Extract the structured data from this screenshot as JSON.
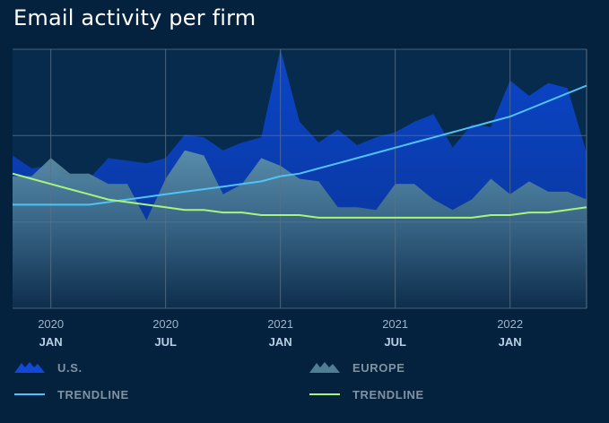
{
  "title": "Email activity per firm",
  "colors": {
    "background": "#04223d",
    "us_fill": "#0a3fb4",
    "europe_fill": "#5d8ea5",
    "us_trend": "#4fc3f7",
    "europe_trend": "#a7f57a",
    "grid": "#5a7088"
  },
  "x_ticks": [
    {
      "year": "2020",
      "month": "JAN"
    },
    {
      "year": "2020",
      "month": "JUL"
    },
    {
      "year": "2021",
      "month": "JAN"
    },
    {
      "year": "2021",
      "month": "JUL"
    },
    {
      "year": "2022",
      "month": "JAN"
    }
  ],
  "legend": [
    {
      "label": "U.S.",
      "icon": "us-area-icon"
    },
    {
      "label": "EUROPE",
      "icon": "europe-area-icon"
    },
    {
      "label": "TRENDLINE",
      "icon": "us-trend-line-icon"
    },
    {
      "label": "TRENDLINE",
      "icon": "europe-trend-line-icon"
    }
  ],
  "chart_data": {
    "type": "area",
    "title": "Email activity per firm",
    "x": [
      "2019-11",
      "2019-12",
      "2020-01",
      "2020-02",
      "2020-03",
      "2020-04",
      "2020-05",
      "2020-06",
      "2020-07",
      "2020-08",
      "2020-09",
      "2020-10",
      "2020-11",
      "2020-12",
      "2021-01",
      "2021-02",
      "2021-03",
      "2021-04",
      "2021-05",
      "2021-06",
      "2021-07",
      "2021-08",
      "2021-09",
      "2021-10",
      "2021-11",
      "2021-12",
      "2022-01",
      "2022-02",
      "2022-03",
      "2022-04",
      "2022-05"
    ],
    "ylim": [
      0,
      100
    ],
    "grid": true,
    "legend_position": "bottom",
    "series": [
      {
        "name": "U.S.",
        "type": "area",
        "values": [
          59,
          54,
          55,
          50,
          50,
          58,
          57,
          56,
          58,
          67,
          66,
          61,
          64,
          66,
          100,
          72,
          64,
          69,
          63,
          66,
          68,
          72,
          75,
          62,
          71,
          70,
          88,
          82,
          87,
          85,
          60
        ]
      },
      {
        "name": "EUROPE",
        "type": "area",
        "values": [
          51,
          51,
          58,
          52,
          52,
          48,
          48,
          34,
          50,
          61,
          59,
          44,
          48,
          58,
          55,
          50,
          49,
          39,
          39,
          38,
          48,
          48,
          42,
          38,
          42,
          50,
          44,
          49,
          45,
          45,
          42
        ]
      },
      {
        "name": "TRENDLINE",
        "series_of": "U.S.",
        "type": "line",
        "values": [
          40,
          40,
          40,
          40,
          40,
          41,
          42,
          43,
          44,
          45,
          46,
          47,
          48,
          49,
          51,
          52,
          54,
          56,
          58,
          60,
          62,
          64,
          66,
          68,
          70,
          72,
          74,
          77,
          80,
          83,
          86
        ]
      },
      {
        "name": "TRENDLINE",
        "series_of": "EUROPE",
        "type": "line",
        "values": [
          52,
          50,
          48,
          46,
          44,
          42,
          41,
          40,
          39,
          38,
          38,
          37,
          37,
          36,
          36,
          36,
          35,
          35,
          35,
          35,
          35,
          35,
          35,
          35,
          35,
          36,
          36,
          37,
          37,
          38,
          39
        ]
      }
    ]
  }
}
